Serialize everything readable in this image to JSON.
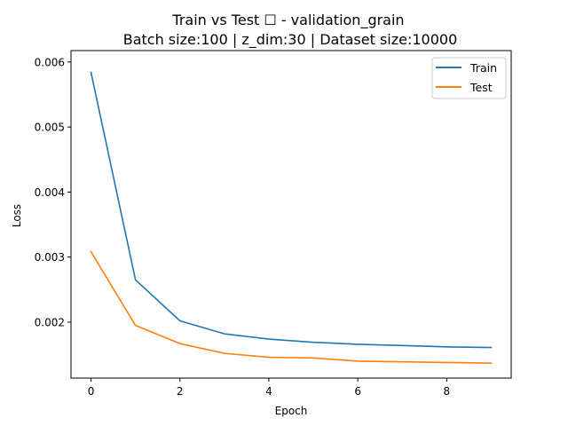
{
  "chart_data": {
    "type": "line",
    "title": "Train vs Test ☐ - validation_grain",
    "subtitle": "Batch size:100 | z_dim:30 | Dataset size:10000",
    "xlabel": "Epoch",
    "ylabel": "Loss",
    "x": [
      0,
      1,
      2,
      3,
      4,
      5,
      6,
      7,
      8,
      9
    ],
    "xlim": [
      -0.45,
      9.45
    ],
    "ylim": [
      0.00114,
      0.006175
    ],
    "x_ticks": [
      0,
      2,
      4,
      6,
      8
    ],
    "x_tick_labels": [
      "0",
      "2",
      "4",
      "6",
      "8"
    ],
    "y_ticks": [
      0.002,
      0.003,
      0.004,
      0.005,
      0.006
    ],
    "y_tick_labels": [
      "0.002",
      "0.003",
      "0.004",
      "0.005",
      "0.006"
    ],
    "grid": false,
    "legend_position": "top-right",
    "series": [
      {
        "name": "Train",
        "color": "#1f77b4",
        "values": [
          0.00584,
          0.00265,
          0.00202,
          0.00182,
          0.00174,
          0.00169,
          0.00166,
          0.00164,
          0.00162,
          0.00161
        ]
      },
      {
        "name": "Test",
        "color": "#ff7f0e",
        "values": [
          0.00308,
          0.00195,
          0.00167,
          0.00152,
          0.00146,
          0.00145,
          0.0014,
          0.00139,
          0.00138,
          0.00137
        ]
      }
    ]
  }
}
